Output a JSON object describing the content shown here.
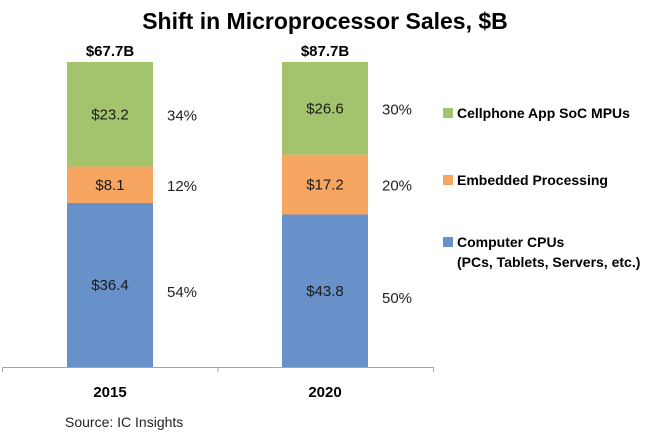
{
  "chart_data": {
    "type": "bar",
    "stacked": true,
    "normalized": true,
    "title": "Shift in Microprocessor Sales, $B",
    "categories": [
      "2015",
      "2020"
    ],
    "totals": [
      "$67.7B",
      "$87.7B"
    ],
    "series": [
      {
        "name": "Computer CPUs",
        "legend_lines": [
          "Computer CPUs",
          "(PCs, Tablets, Servers, etc.)"
        ],
        "color": "#6891c9",
        "values": [
          36.4,
          43.8
        ],
        "value_labels": [
          "$36.4",
          "$43.8"
        ],
        "percent_labels": [
          "54%",
          "50%"
        ],
        "percents": [
          54,
          50
        ]
      },
      {
        "name": "Embedded Processing",
        "legend_lines": [
          "Embedded Processing"
        ],
        "color": "#f6a660",
        "values": [
          8.1,
          17.2
        ],
        "value_labels": [
          "$8.1",
          "$17.2"
        ],
        "percent_labels": [
          "12%",
          "20%"
        ],
        "percents": [
          12,
          20
        ]
      },
      {
        "name": "Cellphone App SoC MPUs",
        "legend_lines": [
          "Cellphone App SoC MPUs"
        ],
        "color": "#a3c46d",
        "values": [
          23.2,
          26.6
        ],
        "value_labels": [
          "$23.2",
          "$26.6"
        ],
        "percent_labels": [
          "34%",
          "30%"
        ],
        "percents": [
          34,
          30
        ]
      }
    ],
    "xlabel": "",
    "ylabel": "",
    "ylim": [
      0,
      100
    ],
    "grid": false,
    "legend_position": "right",
    "source": "Source:  IC Insights"
  }
}
